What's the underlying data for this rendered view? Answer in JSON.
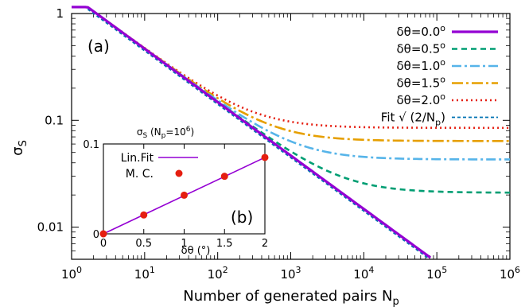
{
  "chart_data": [
    {
      "type": "line",
      "panel_label": "(a)",
      "xlabel": "Number of generated pairs N",
      "xlabel_sub": "p",
      "ylabel": "σ",
      "ylabel_sub": "S",
      "xscale": "log",
      "yscale": "log",
      "xlim": [
        1,
        1000000
      ],
      "ylim": [
        0.005,
        1
      ],
      "x_ticks": [
        {
          "value": 1,
          "base": "10",
          "exp": "0"
        },
        {
          "value": 10,
          "base": "10",
          "exp": "1"
        },
        {
          "value": 100,
          "base": "10",
          "exp": "2"
        },
        {
          "value": 1000,
          "base": "10",
          "exp": "3"
        },
        {
          "value": 10000,
          "base": "10",
          "exp": "4"
        },
        {
          "value": 100000,
          "base": "10",
          "exp": "5"
        },
        {
          "value": 1000000,
          "base": "10",
          "exp": "6"
        }
      ],
      "y_ticks": [
        {
          "value": 1,
          "label": "1"
        },
        {
          "value": 0.1,
          "label": "0.1"
        },
        {
          "value": 0.01,
          "label": "0.01"
        }
      ],
      "legend_position": "top-right",
      "series": [
        {
          "name": "δθ=0.0",
          "name_sup": "o",
          "color": "#9400d3",
          "dash": "",
          "width": 3.2,
          "floor": 0
        },
        {
          "name": "δθ=0.5",
          "name_sup": "o",
          "color": "#009e73",
          "dash": "7,5",
          "width": 2.6,
          "floor": 0.021
        },
        {
          "name": "δθ=1.0",
          "name_sup": "o",
          "color": "#56b4e9",
          "dash": "12,4,3,4",
          "width": 2.6,
          "floor": 0.043
        },
        {
          "name": "δθ=1.5",
          "name_sup": "o",
          "color": "#e69f00",
          "dash": "14,4,3,4",
          "width": 2.6,
          "floor": 0.064
        },
        {
          "name": "δθ=2.0",
          "name_sup": "o",
          "color": "#e51e10",
          "dash": "2,4",
          "width": 2.6,
          "floor": 0.085
        },
        {
          "name": "Fit √ (2/N",
          "name_sub": "p",
          "name_end": ")",
          "color": "#0072b2",
          "dash": "4,3",
          "width": 1.8,
          "fit": true
        }
      ]
    },
    {
      "type": "scatter",
      "panel_label": "(b)",
      "title": "σ",
      "title_sub": "S",
      "title_rest": " (N",
      "title_sub2": "p",
      "title_eq": "=10",
      "title_sup": "6",
      "title_end": ")",
      "xlabel": "δθ (°)",
      "xlim": [
        0,
        2
      ],
      "ylim": [
        0,
        0.1
      ],
      "x_ticks": [
        "0",
        "0.5",
        "1",
        "1.5",
        "2"
      ],
      "y_ticks": [
        "0",
        "0.1"
      ],
      "x": [
        0,
        0.5,
        1,
        1.5,
        2
      ],
      "mc_values": [
        0,
        0.021,
        0.043,
        0.064,
        0.085
      ],
      "fit_line": [
        [
          0,
          0
        ],
        [
          2,
          0.085
        ]
      ],
      "legend": [
        {
          "name": "Lin.Fit",
          "color": "#9400d3"
        },
        {
          "name": "M. C.",
          "color": "#e51e10"
        }
      ]
    }
  ]
}
